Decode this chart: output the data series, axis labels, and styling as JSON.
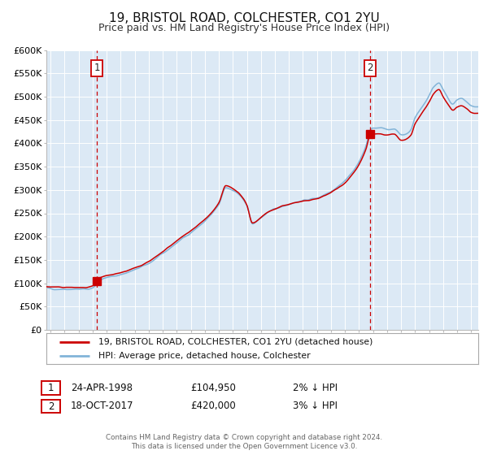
{
  "title": "19, BRISTOL ROAD, COLCHESTER, CO1 2YU",
  "subtitle": "Price paid vs. HM Land Registry's House Price Index (HPI)",
  "title_fontsize": 11,
  "subtitle_fontsize": 9,
  "background_color": "#ffffff",
  "plot_bg_color": "#dce9f5",
  "grid_color": "#ffffff",
  "ylim": [
    0,
    600000
  ],
  "yticks": [
    0,
    50000,
    100000,
    150000,
    200000,
    250000,
    300000,
    350000,
    400000,
    450000,
    500000,
    550000,
    600000
  ],
  "ytick_labels": [
    "£0",
    "£50K",
    "£100K",
    "£150K",
    "£200K",
    "£250K",
    "£300K",
    "£350K",
    "£400K",
    "£450K",
    "£500K",
    "£550K",
    "£600K"
  ],
  "xlim_start": 1994.7,
  "xlim_end": 2025.5,
  "xticks": [
    1995,
    1996,
    1997,
    1998,
    1999,
    2000,
    2001,
    2002,
    2003,
    2004,
    2005,
    2006,
    2007,
    2008,
    2009,
    2010,
    2011,
    2012,
    2013,
    2014,
    2015,
    2016,
    2017,
    2018,
    2019,
    2020,
    2021,
    2022,
    2023,
    2024,
    2025
  ],
  "sale1_x": 1998.31,
  "sale1_y": 104950,
  "sale1_label": "1",
  "sale1_date": "24-APR-1998",
  "sale1_price": "£104,950",
  "sale1_hpi": "2% ↓ HPI",
  "sale2_x": 2017.8,
  "sale2_y": 420000,
  "sale2_label": "2",
  "sale2_date": "18-OCT-2017",
  "sale2_price": "£420,000",
  "sale2_hpi": "3% ↓ HPI",
  "line_red_color": "#cc0000",
  "line_blue_color": "#82b4d8",
  "vline_color": "#cc0000",
  "marker_color": "#cc0000",
  "legend_line1": "19, BRISTOL ROAD, COLCHESTER, CO1 2YU (detached house)",
  "legend_line2": "HPI: Average price, detached house, Colchester",
  "footer_text": "Contains HM Land Registry data © Crown copyright and database right 2024.\nThis data is licensed under the Open Government Licence v3.0."
}
